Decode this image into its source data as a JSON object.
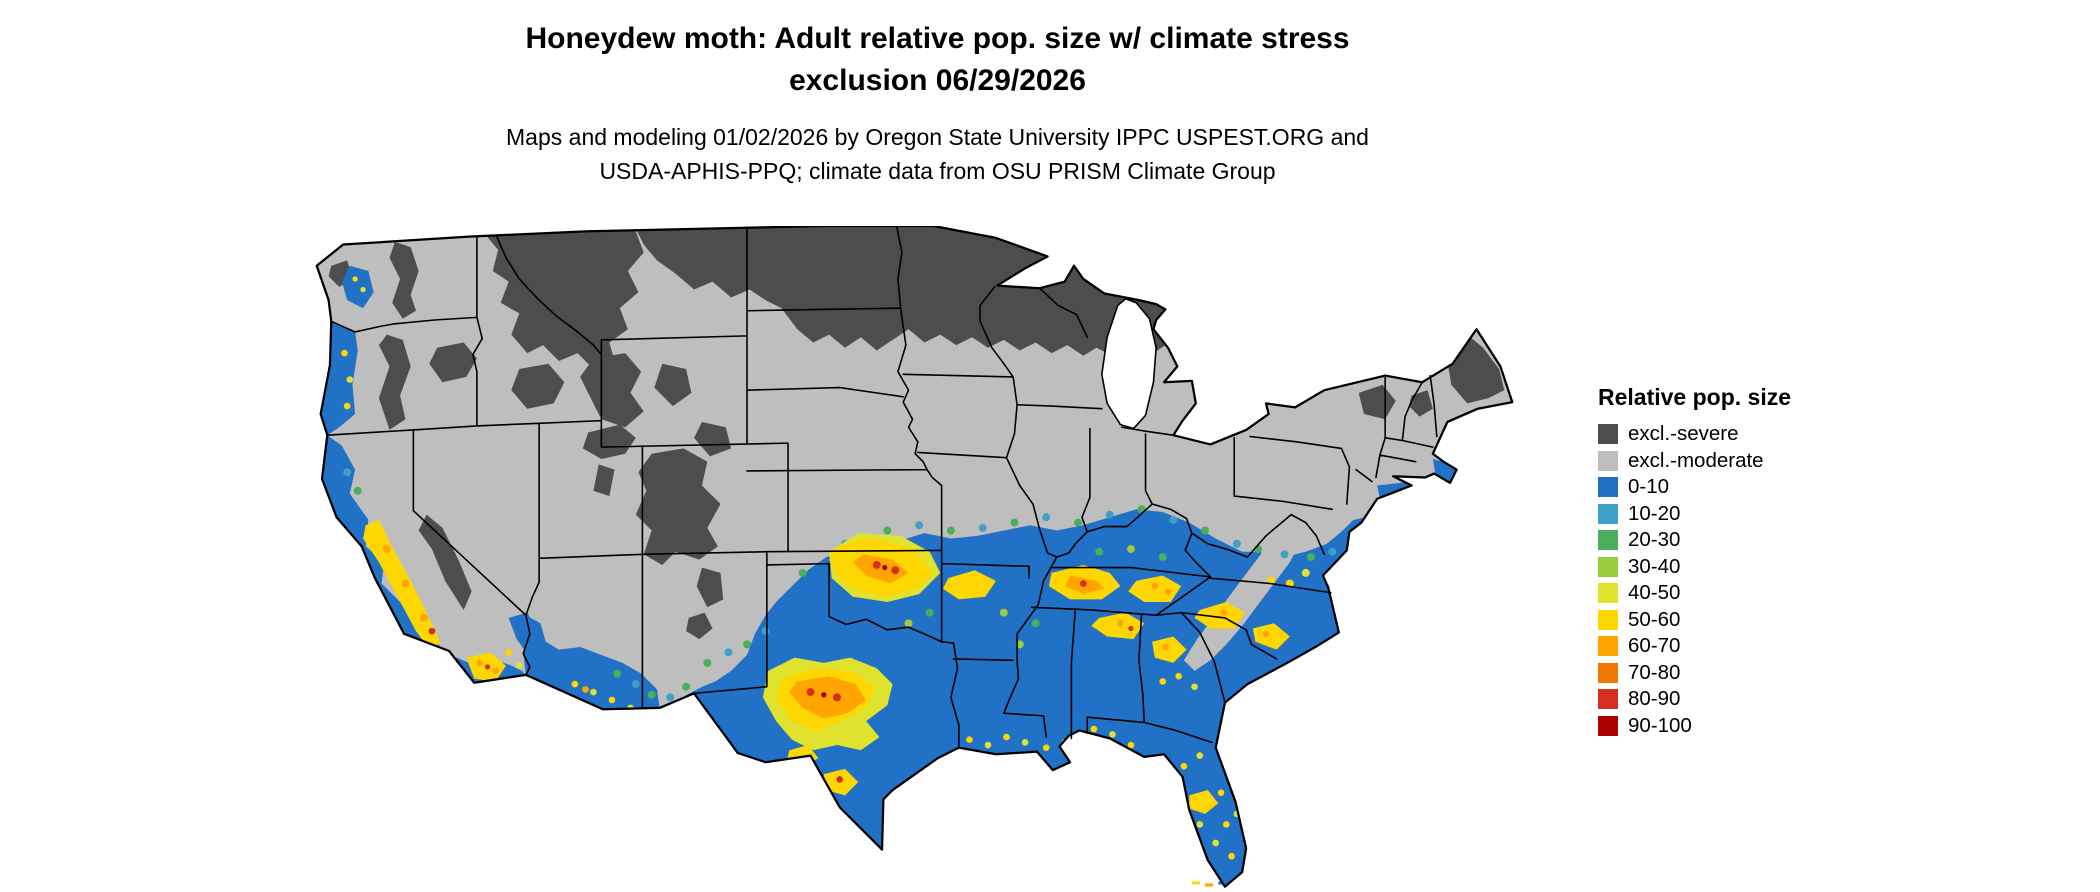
{
  "title": {
    "line1": "Honeydew moth: Adult relative pop. size w/ climate stress",
    "line2": "exclusion 06/29/2026"
  },
  "subtitle": {
    "line1": "Maps and modeling 01/02/2026 by Oregon State University IPPC USPEST.ORG and",
    "line2": "USDA-APHIS-PPQ; climate data from OSU PRISM Climate Group"
  },
  "legend": {
    "title": "Relative pop. size",
    "items": [
      {
        "label": "excl.-severe",
        "color": "#4D4D4D"
      },
      {
        "label": "excl.-moderate",
        "color": "#BEBEBE"
      },
      {
        "label": "0-10",
        "color": "#2171C7"
      },
      {
        "label": "10-20",
        "color": "#3FA0C9"
      },
      {
        "label": "20-30",
        "color": "#4BAE5A"
      },
      {
        "label": "30-40",
        "color": "#9CCB3B"
      },
      {
        "label": "40-50",
        "color": "#DFE32D"
      },
      {
        "label": "50-60",
        "color": "#FFD700"
      },
      {
        "label": "60-70",
        "color": "#FFA400"
      },
      {
        "label": "70-80",
        "color": "#F07800"
      },
      {
        "label": "80-90",
        "color": "#D62E1F"
      },
      {
        "label": "90-100",
        "color": "#AA0000"
      }
    ]
  }
}
